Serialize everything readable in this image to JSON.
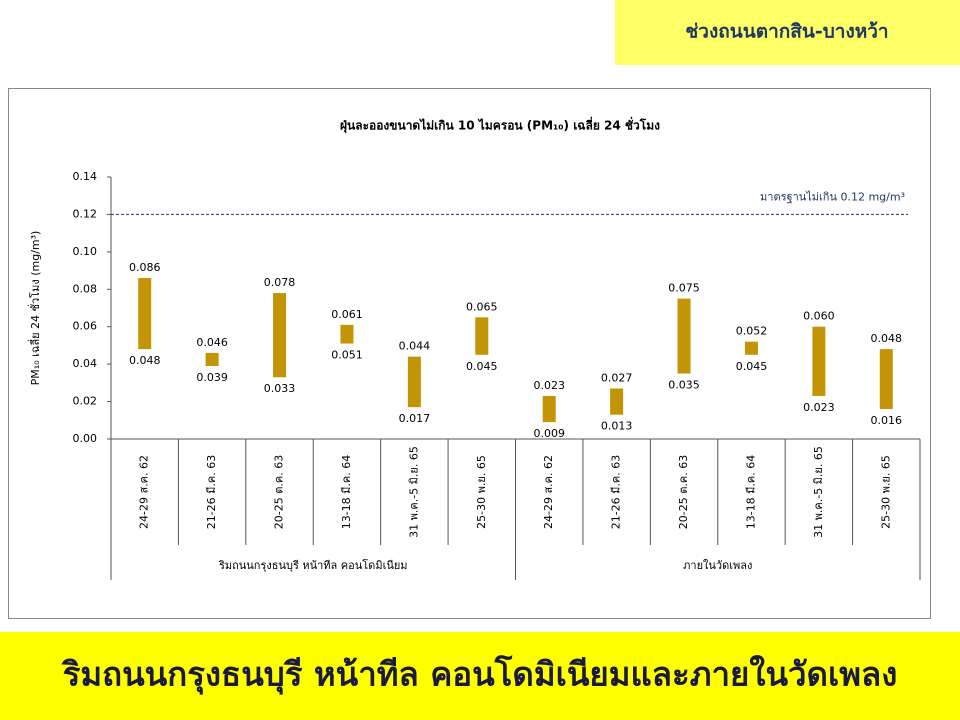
{
  "header": "ช่วงถนนตากสิน-บางหว้า",
  "banner": "ริมถนนกรุงธนบุรี หน้าทีล คอนโดมิเนียมและภายในวัดเพลง",
  "chart_data": {
    "type": "range_bar",
    "title": "ฝุ่นละอองขนาดไม่เกิน 10 ไมครอน (PM₁₀) เฉลี่ย 24 ชั่วโมง",
    "y_label": "PM₁₀ เฉลี่ย 24 ชั่วโมง (mg/m³)",
    "groups": [
      {
        "label": "ริมถนนกรุงธนบุรี หน้าทีล คอนโดมิเนียม",
        "categories": [
          "24-29 ส.ค. 62",
          "21-26 มี.ค. 63",
          "20-25 ต.ค. 63",
          "13-18 มี.ค. 64",
          "31 พ.ค.-5 มิ.ย. 65",
          "25-30 พ.ย. 65"
        ]
      },
      {
        "label": "ภายในวัดเพลง",
        "categories": [
          "24-29 ส.ค. 62",
          "21-26 มี.ค. 63",
          "20-25 ต.ค. 63",
          "13-18 มี.ค. 64",
          "31 พ.ค.-5 มิ.ย. 65",
          "25-30 พ.ย. 65"
        ]
      }
    ],
    "series": [
      {
        "values": [
          0.086,
          0.046,
          0.078,
          0.061,
          0.044,
          0.065,
          0.023,
          0.027,
          0.075,
          0.052,
          0.06,
          0.048
        ],
        "value_labels": [
          "0.086",
          "0.046",
          "0.078",
          "0.061",
          "0.044",
          "0.065",
          "0.023",
          "0.027",
          "0.075",
          "0.052",
          "0.060",
          "0.048"
        ]
      },
      {
        "values": [
          0.048,
          0.039,
          0.033,
          0.051,
          0.017,
          0.045,
          0.009,
          0.013,
          0.035,
          0.045,
          0.023,
          0.016
        ],
        "value_labels": [
          "0.048",
          "0.039",
          "0.033",
          "0.051",
          "0.017",
          "0.045",
          "0.009",
          "0.013",
          "0.035",
          "0.045",
          "0.023",
          "0.016"
        ]
      }
    ],
    "color": "#c39406",
    "ylim": [
      0,
      0.14
    ],
    "yticks": [
      {
        "value": 0,
        "label": "0.00"
      },
      {
        "value": 0.02,
        "label": "0.02"
      },
      {
        "value": 0.04,
        "label": "0.04"
      },
      {
        "value": 0.06,
        "label": "0.06"
      },
      {
        "value": 0.08,
        "label": "0.08"
      },
      {
        "value": 0.1,
        "label": "0.10"
      },
      {
        "value": 0.12,
        "label": "0.12"
      },
      {
        "value": 0.14,
        "label": "0.14"
      }
    ],
    "grid": false,
    "reference": {
      "value": 0.12,
      "label": "มาตรฐานไม่เกิน 0.12 mg/m³",
      "color": "#1f3864"
    }
  }
}
